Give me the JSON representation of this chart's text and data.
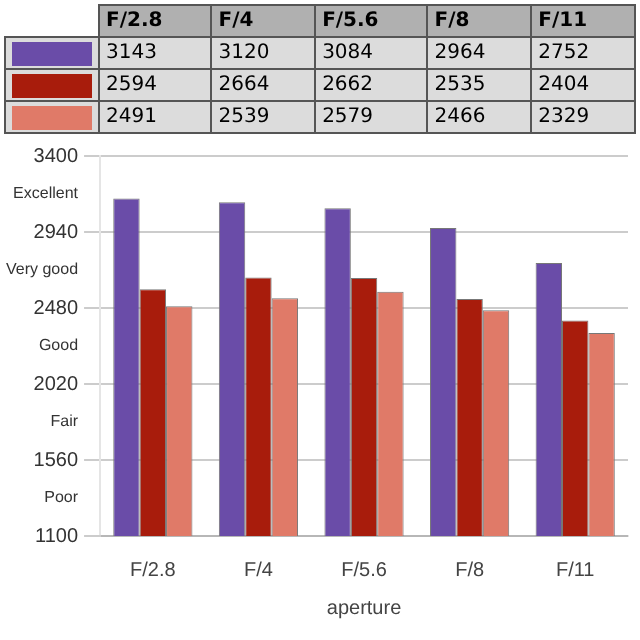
{
  "chart_data": {
    "type": "bar",
    "xlabel": "aperture",
    "categories": [
      "F/2.8",
      "F/4",
      "F/5.6",
      "F/8",
      "F/11"
    ],
    "series": [
      {
        "color": "#6a4ca8",
        "values": [
          3143,
          3120,
          3084,
          2964,
          2752
        ]
      },
      {
        "color": "#a81c0c",
        "values": [
          2594,
          2664,
          2662,
          2535,
          2404
        ]
      },
      {
        "color": "#e07a68",
        "values": [
          2491,
          2539,
          2579,
          2466,
          2329
        ]
      }
    ],
    "ylim": [
      1100,
      3400
    ],
    "yticks": [
      1100,
      {
        "value": 1330,
        "label": "Poor"
      },
      1560,
      {
        "value": 1790,
        "label": "Fair"
      },
      2020,
      {
        "value": 2250,
        "label": "Good"
      },
      2480,
      {
        "value": 2710,
        "label": "Very good"
      },
      2940,
      {
        "value": 3170,
        "label": "Excellent"
      },
      3400
    ],
    "grid": "y",
    "legend": false,
    "data_labels": true
  }
}
